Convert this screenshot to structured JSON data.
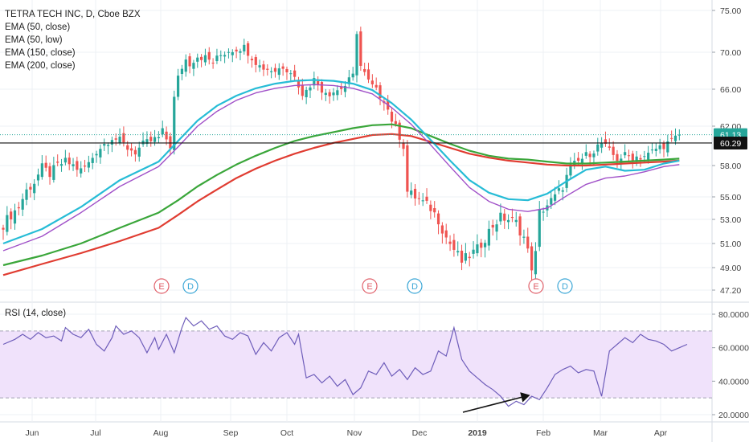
{
  "chart_data": [
    {
      "type": "candlestick",
      "title": "TETRA TECH INC, D, Cboe BZX",
      "indicators": [
        {
          "name": "EMA (50, close)",
          "color": "#26bcd6"
        },
        {
          "name": "EMA (50, low)",
          "color": "#a050c8"
        },
        {
          "name": "EMA (150, close)",
          "color": "#3aa63a"
        },
        {
          "name": "EMA (200, close)",
          "color": "#e03c31"
        }
      ],
      "y_ticks": [
        "75.00",
        "70.00",
        "66.00",
        "62.00",
        "58.00",
        "55.00",
        "53.00",
        "51.00",
        "49.00",
        "47.20"
      ],
      "ylim": [
        47.2,
        75
      ],
      "x_ticks": [
        "Jun",
        "Jul",
        "Aug",
        "Sep",
        "Oct",
        "Nov",
        "Dec",
        "2019",
        "Feb",
        "Mar",
        "Apr"
      ],
      "price_labels": {
        "last": "61.13",
        "horizontal_line": "60.29"
      },
      "last_price": 61.13,
      "horizontal_line": 60.29,
      "events": [
        "E",
        "D",
        "E",
        "D",
        "E",
        "D"
      ],
      "up_color": "#26a69a",
      "down_color": "#ef5350",
      "close_series": [
        [
          0,
          52.6
        ],
        [
          2,
          53.4
        ],
        [
          4,
          54.1
        ],
        [
          6,
          55.6
        ],
        [
          8,
          56.4
        ],
        [
          10,
          57.8
        ],
        [
          12,
          57.2
        ],
        [
          14,
          58.0
        ],
        [
          16,
          58.4
        ],
        [
          18,
          58.0
        ],
        [
          20,
          57.5
        ],
        [
          22,
          58.2
        ],
        [
          24,
          59.5
        ],
        [
          26,
          60.2
        ],
        [
          28,
          60.9
        ],
        [
          30,
          60.5
        ],
        [
          32,
          59.8
        ],
        [
          34,
          59.4
        ],
        [
          36,
          60.1
        ],
        [
          38,
          60.5
        ],
        [
          40,
          60.8
        ],
        [
          41,
          61.4
        ],
        [
          43,
          60.0
        ],
        [
          44,
          65.0
        ],
        [
          45,
          67.2
        ],
        [
          46,
          68.4
        ],
        [
          47,
          69.2
        ],
        [
          48,
          68.8
        ],
        [
          50,
          69.6
        ],
        [
          52,
          69.4
        ],
        [
          54,
          68.9
        ],
        [
          56,
          69.7
        ],
        [
          58,
          70.2
        ],
        [
          60,
          70.4
        ],
        [
          62,
          70.6
        ],
        [
          64,
          69.5
        ],
        [
          65,
          69.0
        ],
        [
          66,
          68.5
        ],
        [
          68,
          68.2
        ],
        [
          70,
          68.0
        ],
        [
          72,
          68.5
        ],
        [
          74,
          68.0
        ],
        [
          76,
          66.5
        ],
        [
          77,
          65.1
        ],
        [
          78,
          66.2
        ],
        [
          80,
          67.0
        ],
        [
          82,
          66.0
        ],
        [
          84,
          65.6
        ],
        [
          86,
          65.9
        ],
        [
          88,
          66.4
        ],
        [
          90,
          67.4
        ],
        [
          91,
          72.5
        ],
        [
          92,
          68.5
        ],
        [
          94,
          66.8
        ],
        [
          96,
          65.8
        ],
        [
          98,
          64.9
        ],
        [
          100,
          62.7
        ],
        [
          102,
          61.0
        ],
        [
          103,
          60.0
        ],
        [
          104,
          55.5
        ],
        [
          106,
          55.0
        ],
        [
          108,
          54.5
        ],
        [
          110,
          54.0
        ],
        [
          112,
          53.0
        ],
        [
          114,
          51.5
        ],
        [
          116,
          50.5
        ],
        [
          118,
          49.5
        ],
        [
          120,
          50.0
        ],
        [
          122,
          50.5
        ],
        [
          124,
          51.5
        ],
        [
          126,
          52.5
        ],
        [
          128,
          53.2
        ],
        [
          130,
          53.0
        ],
        [
          132,
          52.7
        ],
        [
          134,
          51.5
        ],
        [
          136,
          49.1
        ],
        [
          137,
          50.1
        ],
        [
          138,
          53.6
        ],
        [
          140,
          54.3
        ],
        [
          142,
          55.0
        ],
        [
          144,
          56.0
        ],
        [
          146,
          57.8
        ],
        [
          148,
          58.4
        ],
        [
          150,
          59.0
        ],
        [
          152,
          59.6
        ],
        [
          154,
          60.3
        ],
        [
          156,
          59.4
        ],
        [
          158,
          58.7
        ],
        [
          160,
          59.0
        ],
        [
          162,
          58.9
        ],
        [
          164,
          58.9
        ],
        [
          166,
          59.1
        ],
        [
          168,
          59.7
        ],
        [
          170,
          60.1
        ],
        [
          172,
          60.4
        ],
        [
          174,
          61.13
        ]
      ],
      "ema_50_close": [
        [
          0,
          51.0
        ],
        [
          10,
          52.2
        ],
        [
          20,
          54.1
        ],
        [
          30,
          56.6
        ],
        [
          40,
          58.4
        ],
        [
          45,
          60.5
        ],
        [
          50,
          62.6
        ],
        [
          55,
          64.2
        ],
        [
          60,
          65.3
        ],
        [
          65,
          66.1
        ],
        [
          70,
          66.6
        ],
        [
          75,
          66.9
        ],
        [
          80,
          67.0
        ],
        [
          85,
          66.9
        ],
        [
          90,
          66.6
        ],
        [
          95,
          65.9
        ],
        [
          100,
          64.5
        ],
        [
          105,
          62.7
        ],
        [
          110,
          60.6
        ],
        [
          115,
          58.5
        ],
        [
          120,
          56.6
        ],
        [
          125,
          55.4
        ],
        [
          130,
          54.8
        ],
        [
          135,
          54.7
        ],
        [
          140,
          55.3
        ],
        [
          145,
          56.5
        ],
        [
          150,
          57.6
        ],
        [
          155,
          57.9
        ],
        [
          160,
          57.5
        ],
        [
          165,
          57.6
        ],
        [
          170,
          58.2
        ],
        [
          174,
          58.5
        ]
      ],
      "ema_50_low": [
        [
          0,
          50.4
        ],
        [
          10,
          51.6
        ],
        [
          20,
          53.6
        ],
        [
          30,
          56.0
        ],
        [
          40,
          57.9
        ],
        [
          45,
          59.9
        ],
        [
          50,
          62.0
        ],
        [
          55,
          63.6
        ],
        [
          60,
          64.8
        ],
        [
          65,
          65.6
        ],
        [
          70,
          66.1
        ],
        [
          75,
          66.4
        ],
        [
          80,
          66.5
        ],
        [
          85,
          66.4
        ],
        [
          90,
          66.1
        ],
        [
          95,
          65.5
        ],
        [
          100,
          64.0
        ],
        [
          105,
          62.2
        ],
        [
          110,
          60.1
        ],
        [
          115,
          57.9
        ],
        [
          120,
          55.9
        ],
        [
          125,
          54.6
        ],
        [
          130,
          53.9
        ],
        [
          135,
          53.7
        ],
        [
          140,
          54.0
        ],
        [
          145,
          55.1
        ],
        [
          150,
          56.2
        ],
        [
          155,
          56.8
        ],
        [
          160,
          57.0
        ],
        [
          165,
          57.4
        ],
        [
          170,
          57.9
        ],
        [
          174,
          58.1
        ]
      ],
      "ema_150_close": [
        [
          0,
          49.2
        ],
        [
          10,
          50.0
        ],
        [
          20,
          51.0
        ],
        [
          30,
          52.3
        ],
        [
          40,
          53.6
        ],
        [
          45,
          54.7
        ],
        [
          50,
          56.0
        ],
        [
          55,
          57.1
        ],
        [
          60,
          58.1
        ],
        [
          65,
          59.0
        ],
        [
          70,
          59.8
        ],
        [
          75,
          60.5
        ],
        [
          80,
          61.0
        ],
        [
          85,
          61.4
        ],
        [
          90,
          61.8
        ],
        [
          95,
          62.1
        ],
        [
          100,
          62.2
        ],
        [
          105,
          61.8
        ],
        [
          110,
          61.0
        ],
        [
          115,
          60.2
        ],
        [
          120,
          59.5
        ],
        [
          125,
          59.0
        ],
        [
          130,
          58.7
        ],
        [
          135,
          58.6
        ],
        [
          140,
          58.4
        ],
        [
          145,
          58.2
        ],
        [
          150,
          58.2
        ],
        [
          155,
          58.3
        ],
        [
          160,
          58.4
        ],
        [
          165,
          58.5
        ],
        [
          170,
          58.6
        ],
        [
          174,
          58.7
        ]
      ],
      "ema_200_close": [
        [
          0,
          48.4
        ],
        [
          10,
          49.3
        ],
        [
          20,
          50.2
        ],
        [
          30,
          51.2
        ],
        [
          40,
          52.3
        ],
        [
          45,
          53.4
        ],
        [
          50,
          54.6
        ],
        [
          55,
          55.7
        ],
        [
          60,
          56.8
        ],
        [
          65,
          57.7
        ],
        [
          70,
          58.5
        ],
        [
          75,
          59.2
        ],
        [
          80,
          59.8
        ],
        [
          85,
          60.3
        ],
        [
          90,
          60.7
        ],
        [
          95,
          61.1
        ],
        [
          100,
          61.2
        ],
        [
          105,
          61.0
        ],
        [
          110,
          60.4
        ],
        [
          115,
          59.8
        ],
        [
          120,
          59.2
        ],
        [
          125,
          58.8
        ],
        [
          130,
          58.5
        ],
        [
          135,
          58.3
        ],
        [
          140,
          58.1
        ],
        [
          145,
          58.0
        ],
        [
          150,
          58.0
        ],
        [
          155,
          58.1
        ],
        [
          160,
          58.2
        ],
        [
          165,
          58.3
        ],
        [
          170,
          58.4
        ],
        [
          174,
          58.5
        ]
      ]
    },
    {
      "type": "line",
      "title": "RSI (14, close)",
      "y_ticks": [
        "80.0000",
        "60.0000",
        "40.0000",
        "20.0000"
      ],
      "ylim": [
        17,
        82
      ],
      "upper_band": 70,
      "lower_band": 30,
      "line_color": "#6e5dba",
      "band_color": "#f0e2fb",
      "rsi": [
        [
          0,
          62
        ],
        [
          3,
          65
        ],
        [
          5,
          68
        ],
        [
          7,
          65
        ],
        [
          9,
          69
        ],
        [
          11,
          66
        ],
        [
          13,
          67
        ],
        [
          15,
          64
        ],
        [
          16,
          72
        ],
        [
          18,
          68
        ],
        [
          20,
          66
        ],
        [
          22,
          71
        ],
        [
          24,
          62
        ],
        [
          26,
          58
        ],
        [
          28,
          66
        ],
        [
          29,
          73
        ],
        [
          31,
          68
        ],
        [
          33,
          70
        ],
        [
          35,
          66
        ],
        [
          37,
          57
        ],
        [
          39,
          66
        ],
        [
          40,
          59
        ],
        [
          42,
          68
        ],
        [
          44,
          57
        ],
        [
          46,
          72
        ],
        [
          47,
          78
        ],
        [
          49,
          73
        ],
        [
          51,
          76
        ],
        [
          53,
          71
        ],
        [
          55,
          73
        ],
        [
          57,
          67
        ],
        [
          59,
          65
        ],
        [
          61,
          69
        ],
        [
          63,
          67
        ],
        [
          65,
          56
        ],
        [
          67,
          63
        ],
        [
          69,
          58
        ],
        [
          71,
          66
        ],
        [
          73,
          69
        ],
        [
          75,
          62
        ],
        [
          76,
          68
        ],
        [
          78,
          42
        ],
        [
          80,
          44
        ],
        [
          82,
          39
        ],
        [
          84,
          43
        ],
        [
          86,
          37
        ],
        [
          88,
          41
        ],
        [
          90,
          32
        ],
        [
          92,
          36
        ],
        [
          94,
          46
        ],
        [
          96,
          44
        ],
        [
          98,
          51
        ],
        [
          100,
          43
        ],
        [
          102,
          47
        ],
        [
          104,
          41
        ],
        [
          106,
          48
        ],
        [
          108,
          44
        ],
        [
          110,
          46
        ],
        [
          112,
          58
        ],
        [
          114,
          55
        ],
        [
          116,
          72
        ],
        [
          118,
          53
        ],
        [
          120,
          46
        ],
        [
          122,
          42
        ],
        [
          124,
          38
        ],
        [
          126,
          35
        ],
        [
          128,
          31
        ],
        [
          130,
          25
        ],
        [
          132,
          28
        ],
        [
          134,
          26
        ],
        [
          136,
          31
        ],
        [
          138,
          29
        ],
        [
          140,
          36
        ],
        [
          142,
          44
        ],
        [
          144,
          47
        ],
        [
          146,
          49
        ],
        [
          148,
          45
        ],
        [
          150,
          47
        ],
        [
          152,
          46
        ],
        [
          154,
          31
        ],
        [
          156,
          58
        ],
        [
          158,
          62
        ],
        [
          160,
          66
        ],
        [
          162,
          63
        ],
        [
          164,
          68
        ],
        [
          166,
          65
        ],
        [
          168,
          64
        ],
        [
          170,
          62
        ],
        [
          172,
          58
        ],
        [
          174,
          60
        ],
        [
          176,
          62
        ]
      ]
    }
  ]
}
